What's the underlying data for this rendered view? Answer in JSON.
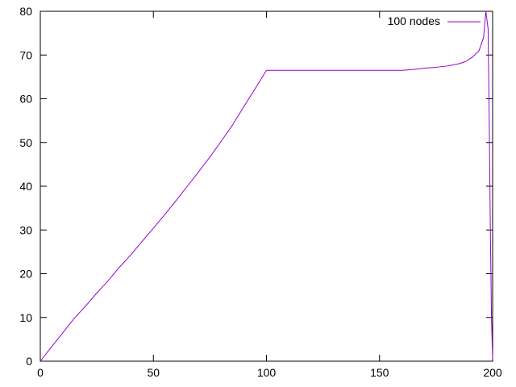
{
  "chart_data": {
    "type": "line",
    "title": "",
    "xlabel": "",
    "ylabel": "",
    "xlim": [
      0,
      200
    ],
    "ylim": [
      0,
      80
    ],
    "xticks": [
      "0",
      "50",
      "100",
      "150",
      "200"
    ],
    "yticks": [
      "0",
      "10",
      "20",
      "30",
      "40",
      "50",
      "60",
      "70",
      "80"
    ],
    "grid": false,
    "legend_position": "top-right",
    "series": [
      {
        "name": "100 nodes",
        "color": "#9400d3",
        "x": [
          0,
          5,
          10,
          15,
          20,
          25,
          30,
          35,
          40,
          45,
          50,
          55,
          60,
          65,
          70,
          75,
          80,
          85,
          90,
          95,
          100,
          110,
          120,
          130,
          140,
          150,
          160,
          165,
          170,
          175,
          180,
          185,
          188,
          191,
          194,
          196,
          197,
          198,
          198.5,
          199,
          199.5,
          200
        ],
        "y": [
          0,
          3.3,
          6.5,
          9.8,
          12.6,
          15.6,
          18.4,
          21.5,
          24.3,
          27.4,
          30.4,
          33.5,
          36.7,
          40.0,
          43.3,
          46.7,
          50.3,
          54.0,
          58.2,
          62.3,
          66.5,
          66.5,
          66.5,
          66.5,
          66.5,
          66.5,
          66.5,
          66.7,
          67.0,
          67.2,
          67.5,
          68.0,
          68.5,
          69.5,
          71.0,
          74.0,
          80.0,
          76.0,
          55.0,
          30.0,
          10.0,
          0.5
        ]
      }
    ]
  }
}
